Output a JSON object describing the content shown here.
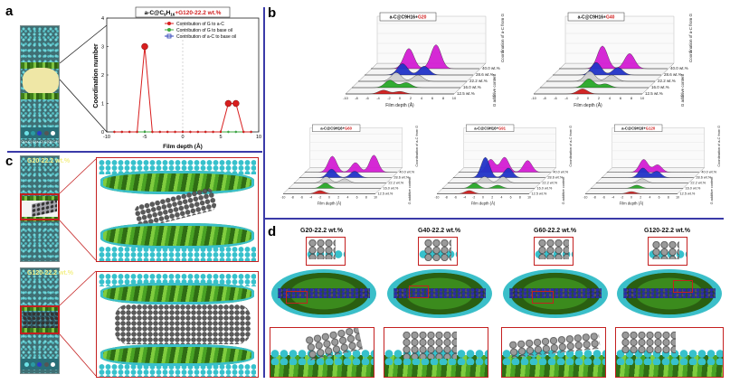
{
  "panel_labels": {
    "a": "a",
    "b": "b",
    "c": "c",
    "d": "d"
  },
  "panel_a": {
    "title_prefix": "a-C@C",
    "title_sub1": "9",
    "title_mid": "H",
    "title_sub2": "16",
    "title_plus": "+",
    "title_suffix": "G120-22.2 wt.%",
    "ylabel": "Coordination number",
    "xlabel": "Film depth (Å)",
    "legend_strip_labels": [
      "C(a-C)",
      "C(a-C)",
      "C(G)",
      "C",
      "H"
    ],
    "legend": [
      "Contribution of G to a-C",
      "Contribution of G to base oil",
      "Contribution of a-C to base oil"
    ],
    "colors": {
      "red": "#d81e1e",
      "green": "#3da83d",
      "blue": "#2c3fb8"
    }
  },
  "chart_data": {
    "type": "line",
    "title": "a-C@C9H16+G120-22.2 wt.%",
    "xlabel": "Film depth (Å)",
    "ylabel": "Coordination number",
    "xlim": [
      -10,
      10
    ],
    "ylim": [
      0,
      4
    ],
    "xticks": [
      "-10",
      "-5",
      "0",
      "5",
      "10"
    ],
    "yticks": [
      "0",
      "1",
      "2",
      "3",
      "4"
    ],
    "series": [
      {
        "name": "Contribution of G to a-C",
        "color": "#d81e1e",
        "x": [
          -9,
          -8,
          -7,
          -6,
          -5,
          -4,
          -3,
          -2,
          -1,
          0,
          1,
          2,
          3,
          4,
          5,
          6,
          7,
          8,
          9
        ],
        "y": [
          0,
          0,
          0,
          0,
          3,
          0,
          0,
          0,
          0,
          0,
          0,
          0,
          0,
          0,
          0,
          1,
          1,
          0,
          0
        ]
      },
      {
        "name": "Contribution of G to base oil",
        "color": "#3da83d",
        "x": [
          -9,
          -8,
          -7,
          -6,
          -5,
          -4,
          -3,
          -2,
          -1,
          0,
          1,
          2,
          3,
          4,
          5,
          6,
          7,
          8,
          9
        ],
        "y": [
          0,
          0,
          0,
          0,
          0,
          0,
          0,
          0,
          0,
          0,
          0,
          0,
          0,
          0,
          0,
          0,
          0,
          0,
          0
        ]
      },
      {
        "name": "Contribution of a-C to base oil",
        "color": "#2c3fb8",
        "x": [
          -9,
          -8,
          -7,
          -6,
          -5,
          -4,
          -3,
          -2,
          -1,
          0,
          1,
          2,
          3,
          4,
          5,
          6,
          7,
          8,
          9
        ],
        "y": [
          0,
          0,
          0,
          0,
          0,
          0,
          0,
          0,
          0,
          0,
          0,
          0,
          0,
          0,
          0,
          0,
          0,
          0,
          0
        ]
      }
    ]
  },
  "panel_b": {
    "zlabel": "Coordination of a-C from G",
    "xlabel": "Film depth (Å)",
    "ylabel": "G additive content",
    "xticks": [
      "-10",
      "-8",
      "-6",
      "-4",
      "-2",
      "0",
      "2",
      "4",
      "6",
      "8",
      "10"
    ],
    "plots": [
      {
        "prefix": "a-C@C9H16+",
        "red": "G20",
        "wt": [
          "12.5 wt.%",
          "16.0 wt.%",
          "22.2 wt.%",
          "28.6 wt.%",
          "40.0 wt.%"
        ]
      },
      {
        "prefix": "a-C@C9H16+",
        "red": "G40",
        "wt": [
          "12.5 wt.%",
          "16.0 wt.%",
          "22.2 wt.%",
          "28.6 wt.%",
          "40.0 wt.%"
        ]
      },
      {
        "prefix": "a-C@C9H16+",
        "red": "G60",
        "wt": [
          "12.5 wt.%",
          "16.0 wt.%",
          "22.2 wt.%",
          "28.6 wt.%",
          "40.0 wt.%"
        ]
      },
      {
        "prefix": "a-C@C9H16+",
        "red": "G91",
        "wt": [
          "12.5 wt.%",
          "16.0 wt.%",
          "22.2 wt.%",
          "28.6 wt.%",
          "40.0 wt.%"
        ]
      },
      {
        "prefix": "a-C@C9H16+",
        "red": "G120",
        "wt": [
          "12.5 wt.%",
          "16.0 wt.%",
          "22.2 wt.%",
          "28.6 wt.%",
          "40.0 wt.%"
        ]
      }
    ],
    "layer_colors": [
      "#d01c1c",
      "#28a828",
      "#cfcfcf",
      "#2234c8",
      "#d41ed4"
    ]
  },
  "panel_c": {
    "top_label": "G20-22.2 wt.%",
    "bottom_label": "G120-22.2 wt.%"
  },
  "panel_d": {
    "titles": [
      "G20-22.2 wt.%",
      "G40-22.2 wt.%",
      "G60-22.2 wt.%",
      "G120-22.2 wt.%"
    ]
  }
}
